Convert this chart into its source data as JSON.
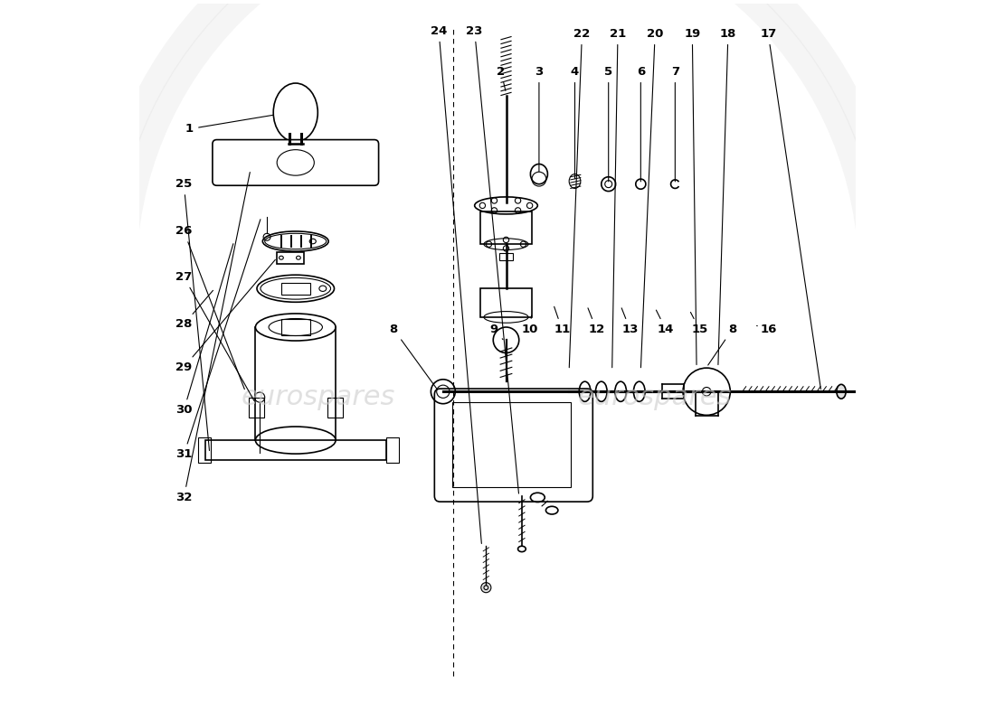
{
  "bg_color": "#ffffff",
  "line_color": "#000000",
  "watermark_text": "eurospares",
  "lw_main": 1.2,
  "lw_thin": 0.8,
  "label_data": {
    "1": [
      0.07,
      0.825,
      0.19,
      0.845
    ],
    "2": [
      0.505,
      0.905,
      0.512,
      0.875
    ],
    "3": [
      0.558,
      0.905,
      0.558,
      0.762
    ],
    "4": [
      0.608,
      0.905,
      0.608,
      0.752
    ],
    "5": [
      0.655,
      0.905,
      0.655,
      0.748
    ],
    "6": [
      0.7,
      0.905,
      0.7,
      0.748
    ],
    "7": [
      0.748,
      0.905,
      0.748,
      0.748
    ],
    "8a": [
      0.355,
      0.545,
      0.418,
      0.458
    ],
    "9": [
      0.495,
      0.545,
      0.51,
      0.528
    ],
    "10": [
      0.545,
      0.545,
      0.548,
      0.568
    ],
    "11": [
      0.59,
      0.545,
      0.578,
      0.58
    ],
    "12": [
      0.638,
      0.545,
      0.625,
      0.578
    ],
    "13": [
      0.685,
      0.545,
      0.672,
      0.578
    ],
    "14": [
      0.735,
      0.545,
      0.72,
      0.575
    ],
    "15": [
      0.782,
      0.545,
      0.768,
      0.572
    ],
    "8b": [
      0.828,
      0.545,
      0.792,
      0.492
    ],
    "16": [
      0.878,
      0.545,
      0.862,
      0.55
    ],
    "17": [
      0.878,
      0.958,
      0.952,
      0.458
    ],
    "18": [
      0.822,
      0.958,
      0.808,
      0.492
    ],
    "19": [
      0.772,
      0.958,
      0.778,
      0.492
    ],
    "20": [
      0.72,
      0.958,
      0.7,
      0.488
    ],
    "21": [
      0.668,
      0.958,
      0.66,
      0.488
    ],
    "22": [
      0.618,
      0.958,
      0.6,
      0.488
    ],
    "23": [
      0.468,
      0.962,
      0.53,
      0.312
    ],
    "24": [
      0.418,
      0.962,
      0.478,
      0.242
    ],
    "25": [
      0.062,
      0.748,
      0.098,
      0.372
    ],
    "26": [
      0.062,
      0.682,
      0.148,
      0.458
    ],
    "27": [
      0.062,
      0.618,
      0.162,
      0.442
    ],
    "28": [
      0.062,
      0.552,
      0.105,
      0.602
    ],
    "29": [
      0.062,
      0.492,
      0.192,
      0.645
    ],
    "30": [
      0.062,
      0.432,
      0.132,
      0.668
    ],
    "31": [
      0.062,
      0.37,
      0.17,
      0.702
    ],
    "32": [
      0.062,
      0.31,
      0.155,
      0.768
    ]
  }
}
